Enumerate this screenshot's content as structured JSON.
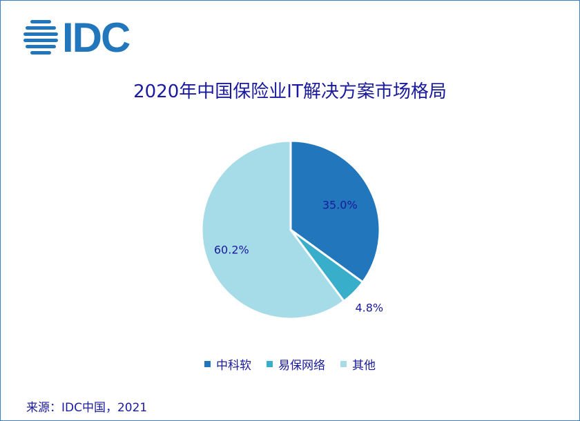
{
  "logo_text": "IDC",
  "source": "来源：IDC中国，2021",
  "chart_data": {
    "type": "pie",
    "title": "2020年中国保险业IT解决方案市场格局",
    "categories": [
      "中科软",
      "易保网络",
      "其他"
    ],
    "values": [
      35.0,
      4.8,
      60.2
    ],
    "labels": [
      "35.0%",
      "4.8%",
      "60.2%"
    ],
    "colors": [
      "#2276bb",
      "#38aecb",
      "#a6dce7"
    ],
    "legend": "bottom"
  }
}
